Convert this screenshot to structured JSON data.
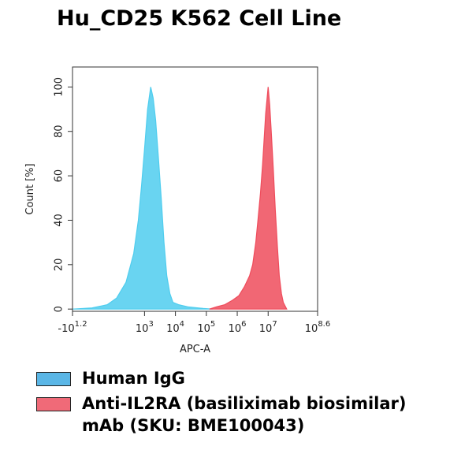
{
  "chart_data": {
    "type": "area",
    "title": "Hu_CD25 K562 Cell Line",
    "x_label": "APC-A",
    "y_label": "Count [%]",
    "xlim": [
      0.67,
      8.6
    ],
    "ylim": [
      -1,
      109
    ],
    "xticks": [
      {
        "value": 0.67,
        "label": "-10",
        "exponent": "1.2"
      },
      {
        "value": 3,
        "label": "10",
        "exponent": "3"
      },
      {
        "value": 4,
        "label": "10",
        "exponent": "4"
      },
      {
        "value": 5,
        "label": "10",
        "exponent": "5"
      },
      {
        "value": 6,
        "label": "10",
        "exponent": "6"
      },
      {
        "value": 7,
        "label": "10",
        "exponent": "7"
      },
      {
        "value": 8.6,
        "label": "10",
        "exponent": "8.6"
      }
    ],
    "yticks": [
      0,
      20,
      40,
      60,
      80,
      100
    ],
    "series": [
      {
        "name": "Human IgG",
        "color": "#4fcdee",
        "legend_color": "#5ab6e6",
        "x": [
          0.67,
          1.3,
          1.8,
          2.1,
          2.4,
          2.65,
          2.8,
          2.9,
          3.0,
          3.1,
          3.2,
          3.28,
          3.36,
          3.45,
          3.54,
          3.63,
          3.72,
          3.82,
          3.92,
          4.1,
          4.4,
          4.9,
          5.2
        ],
        "values": [
          0,
          0.5,
          2,
          5,
          12,
          25,
          40,
          55,
          72,
          90,
          100,
          95,
          85,
          68,
          50,
          30,
          15,
          7,
          3,
          2,
          1,
          0.3,
          0
        ]
      },
      {
        "name": "Anti-IL2RA (basiliximab biosimilar) mAb (SKU: BME100043)",
        "color": "#ef4c5c",
        "legend_color": "#f06a78",
        "x": [
          5.1,
          5.33,
          5.6,
          5.85,
          6.05,
          6.23,
          6.4,
          6.5,
          6.6,
          6.67,
          6.75,
          6.82,
          6.92,
          7.0,
          7.05,
          7.1,
          7.17,
          7.23,
          7.3,
          7.36,
          7.43,
          7.49,
          7.6
        ],
        "values": [
          0,
          1,
          2,
          4,
          6,
          10,
          15,
          20,
          30,
          40,
          52,
          65,
          88,
          100,
          92,
          80,
          62,
          45,
          28,
          15,
          7,
          3,
          0
        ]
      }
    ]
  }
}
